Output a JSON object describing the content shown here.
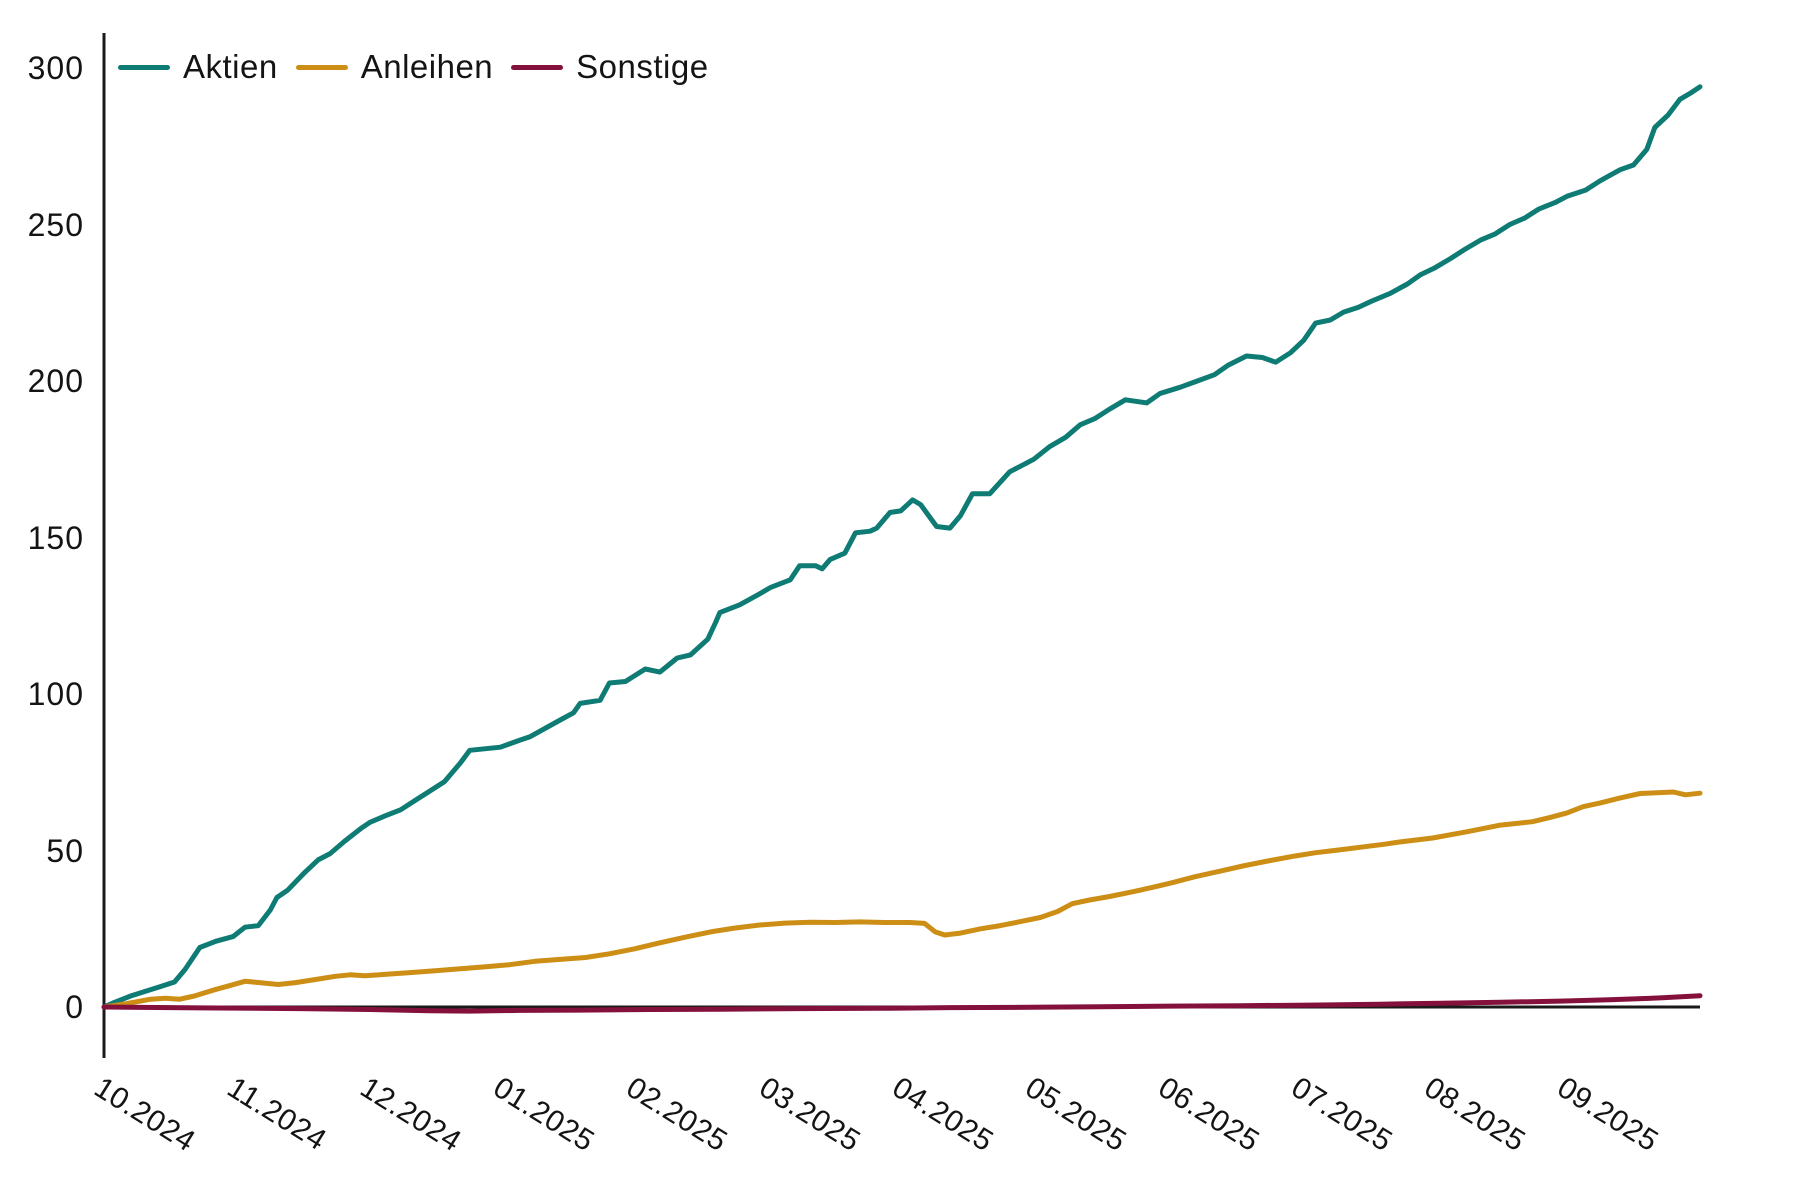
{
  "chart_data": {
    "type": "line",
    "title": "",
    "xlabel": "",
    "ylabel": "",
    "grid": "off",
    "legend_position": "top-left",
    "x_unit": "months since 10.2024 (0 = 01.10.2024)",
    "xlim": [
      0,
      12
    ],
    "ylim": [
      -16,
      311
    ],
    "y_ticks": [
      300,
      250,
      200,
      150,
      100,
      50,
      0
    ],
    "x_tick_labels": [
      "10.2024",
      "11.2024",
      "12.2024",
      "01.2025",
      "02.2025",
      "03.2025",
      "04.2025",
      "05.2025",
      "06.2025",
      "07.2025",
      "08.2025",
      "09.2025"
    ],
    "baseline": {
      "y": 0,
      "color": "#1a1a1a"
    },
    "axis_color": "#1a1a1a",
    "series": [
      {
        "name": "Aktien",
        "color": "#0e7b74",
        "points": [
          [
            0,
            0
          ],
          [
            0.08,
            1.5
          ],
          [
            0.2,
            3.5
          ],
          [
            0.31,
            5
          ],
          [
            0.42,
            6.5
          ],
          [
            0.53,
            8
          ],
          [
            0.61,
            12
          ],
          [
            0.72,
            19
          ],
          [
            0.84,
            21
          ],
          [
            0.97,
            22.5
          ],
          [
            1.06,
            25.5
          ],
          [
            1.16,
            26
          ],
          [
            1.25,
            31
          ],
          [
            1.3,
            35
          ],
          [
            1.38,
            37.3
          ],
          [
            1.51,
            43
          ],
          [
            1.61,
            47
          ],
          [
            1.7,
            49
          ],
          [
            1.81,
            53
          ],
          [
            1.93,
            57
          ],
          [
            2.0,
            59
          ],
          [
            2.11,
            61
          ],
          [
            2.23,
            63
          ],
          [
            2.34,
            66
          ],
          [
            2.45,
            69
          ],
          [
            2.56,
            72
          ],
          [
            2.68,
            78
          ],
          [
            2.75,
            82
          ],
          [
            2.98,
            83
          ],
          [
            3.13,
            85.3
          ],
          [
            3.2,
            86.3
          ],
          [
            3.43,
            91.7
          ],
          [
            3.53,
            94
          ],
          [
            3.58,
            97
          ],
          [
            3.73,
            98
          ],
          [
            3.8,
            103.5
          ],
          [
            3.92,
            104
          ],
          [
            4.07,
            108
          ],
          [
            4.18,
            107
          ],
          [
            4.31,
            111.5
          ],
          [
            4.41,
            112.5
          ],
          [
            4.54,
            117.5
          ],
          [
            4.6,
            123
          ],
          [
            4.63,
            126
          ],
          [
            4.78,
            128.5
          ],
          [
            4.93,
            132
          ],
          [
            5.01,
            134
          ],
          [
            5.16,
            136.5
          ],
          [
            5.23,
            141
          ],
          [
            5.35,
            141
          ],
          [
            5.4,
            140
          ],
          [
            5.46,
            143
          ],
          [
            5.57,
            145
          ],
          [
            5.65,
            151.5
          ],
          [
            5.76,
            152
          ],
          [
            5.81,
            153
          ],
          [
            5.91,
            158
          ],
          [
            5.99,
            158.5
          ],
          [
            6.08,
            162
          ],
          [
            6.14,
            160.5
          ],
          [
            6.26,
            153.5
          ],
          [
            6.36,
            153
          ],
          [
            6.44,
            157
          ],
          [
            6.53,
            164
          ],
          [
            6.66,
            164
          ],
          [
            6.81,
            171
          ],
          [
            6.99,
            175
          ],
          [
            7.11,
            179
          ],
          [
            7.23,
            182
          ],
          [
            7.34,
            186
          ],
          [
            7.45,
            188
          ],
          [
            7.56,
            191
          ],
          [
            7.68,
            194
          ],
          [
            7.84,
            193
          ],
          [
            7.94,
            196
          ],
          [
            8.09,
            198
          ],
          [
            8.22,
            200
          ],
          [
            8.35,
            202
          ],
          [
            8.45,
            205
          ],
          [
            8.59,
            208
          ],
          [
            8.71,
            207.5
          ],
          [
            8.81,
            206
          ],
          [
            8.92,
            209
          ],
          [
            9.02,
            213
          ],
          [
            9.11,
            218.5
          ],
          [
            9.22,
            219.5
          ],
          [
            9.32,
            222
          ],
          [
            9.43,
            223.5
          ],
          [
            9.53,
            225.5
          ],
          [
            9.67,
            228
          ],
          [
            9.8,
            231
          ],
          [
            9.9,
            234
          ],
          [
            10.0,
            236
          ],
          [
            10.12,
            239
          ],
          [
            10.23,
            242
          ],
          [
            10.35,
            245
          ],
          [
            10.46,
            247
          ],
          [
            10.57,
            250
          ],
          [
            10.68,
            252
          ],
          [
            10.79,
            255
          ],
          [
            10.91,
            257
          ],
          [
            11.0,
            259
          ],
          [
            11.14,
            261
          ],
          [
            11.25,
            264
          ],
          [
            11.4,
            267.5
          ],
          [
            11.5,
            269
          ],
          [
            11.6,
            274
          ],
          [
            11.66,
            281
          ],
          [
            11.76,
            285
          ],
          [
            11.85,
            290
          ],
          [
            11.93,
            292
          ],
          [
            12.0,
            294
          ]
        ]
      },
      {
        "name": "Anleihen",
        "color": "#cc8e15",
        "points": [
          [
            0,
            0
          ],
          [
            0.16,
            1
          ],
          [
            0.35,
            2.5
          ],
          [
            0.46,
            2.8
          ],
          [
            0.57,
            2.5
          ],
          [
            0.68,
            3.5
          ],
          [
            0.83,
            5.5
          ],
          [
            0.96,
            7
          ],
          [
            1.06,
            8.2
          ],
          [
            1.17,
            7.8
          ],
          [
            1.31,
            7.2
          ],
          [
            1.44,
            7.8
          ],
          [
            1.59,
            8.8
          ],
          [
            1.74,
            9.8
          ],
          [
            1.85,
            10.3
          ],
          [
            1.96,
            10
          ],
          [
            2.11,
            10.4
          ],
          [
            2.3,
            11
          ],
          [
            2.49,
            11.6
          ],
          [
            2.68,
            12.2
          ],
          [
            2.86,
            12.8
          ],
          [
            3.05,
            13.5
          ],
          [
            3.24,
            14.6
          ],
          [
            3.43,
            15.2
          ],
          [
            3.62,
            15.8
          ],
          [
            3.8,
            17
          ],
          [
            3.99,
            18.6
          ],
          [
            4.18,
            20.5
          ],
          [
            4.37,
            22.3
          ],
          [
            4.56,
            24
          ],
          [
            4.74,
            25.2
          ],
          [
            4.93,
            26.2
          ],
          [
            5.12,
            26.8
          ],
          [
            5.31,
            27.1
          ],
          [
            5.5,
            27
          ],
          [
            5.68,
            27.2
          ],
          [
            5.87,
            27
          ],
          [
            6.06,
            27
          ],
          [
            6.17,
            26.7
          ],
          [
            6.25,
            24
          ],
          [
            6.32,
            23
          ],
          [
            6.44,
            23.6
          ],
          [
            6.59,
            25
          ],
          [
            6.74,
            26
          ],
          [
            6.89,
            27.3
          ],
          [
            7.04,
            28.6
          ],
          [
            7.17,
            30.5
          ],
          [
            7.28,
            33
          ],
          [
            7.41,
            34.2
          ],
          [
            7.56,
            35.3
          ],
          [
            7.71,
            36.6
          ],
          [
            7.86,
            38
          ],
          [
            8.02,
            39.6
          ],
          [
            8.2,
            41.6
          ],
          [
            8.39,
            43.4
          ],
          [
            8.58,
            45.2
          ],
          [
            8.77,
            46.8
          ],
          [
            8.95,
            48.2
          ],
          [
            9.11,
            49.3
          ],
          [
            9.29,
            50.2
          ],
          [
            9.48,
            51.2
          ],
          [
            9.63,
            52
          ],
          [
            9.74,
            52.7
          ],
          [
            9.99,
            54
          ],
          [
            10.25,
            56
          ],
          [
            10.5,
            58.1
          ],
          [
            10.74,
            59.2
          ],
          [
            10.87,
            60.5
          ],
          [
            11.0,
            62
          ],
          [
            11.12,
            64
          ],
          [
            11.25,
            65.2
          ],
          [
            11.4,
            66.8
          ],
          [
            11.55,
            68.2
          ],
          [
            11.7,
            68.5
          ],
          [
            11.8,
            68.7
          ],
          [
            11.89,
            67.8
          ],
          [
            12.0,
            68.3
          ]
        ]
      },
      {
        "name": "Sonstige",
        "color": "#84113c",
        "points": [
          [
            0,
            0
          ],
          [
            0.72,
            -0.3
          ],
          [
            1.47,
            -0.5
          ],
          [
            2.0,
            -0.8
          ],
          [
            2.45,
            -1.2
          ],
          [
            2.75,
            -1.3
          ],
          [
            3.13,
            -1.1
          ],
          [
            3.58,
            -1
          ],
          [
            4.11,
            -0.8
          ],
          [
            4.63,
            -0.7
          ],
          [
            5.23,
            -0.5
          ],
          [
            5.83,
            -0.4
          ],
          [
            6.36,
            -0.2
          ],
          [
            6.96,
            -0.1
          ],
          [
            7.49,
            0.1
          ],
          [
            8.02,
            0.3
          ],
          [
            8.54,
            0.4
          ],
          [
            9.07,
            0.6
          ],
          [
            9.59,
            0.9
          ],
          [
            10.05,
            1.2
          ],
          [
            10.5,
            1.5
          ],
          [
            10.95,
            1.9
          ],
          [
            11.32,
            2.3
          ],
          [
            11.7,
            2.9
          ],
          [
            12.0,
            3.6
          ]
        ]
      }
    ]
  },
  "legend": {
    "items": [
      {
        "label": "Aktien"
      },
      {
        "label": "Anleihen"
      },
      {
        "label": "Sonstige"
      }
    ]
  }
}
